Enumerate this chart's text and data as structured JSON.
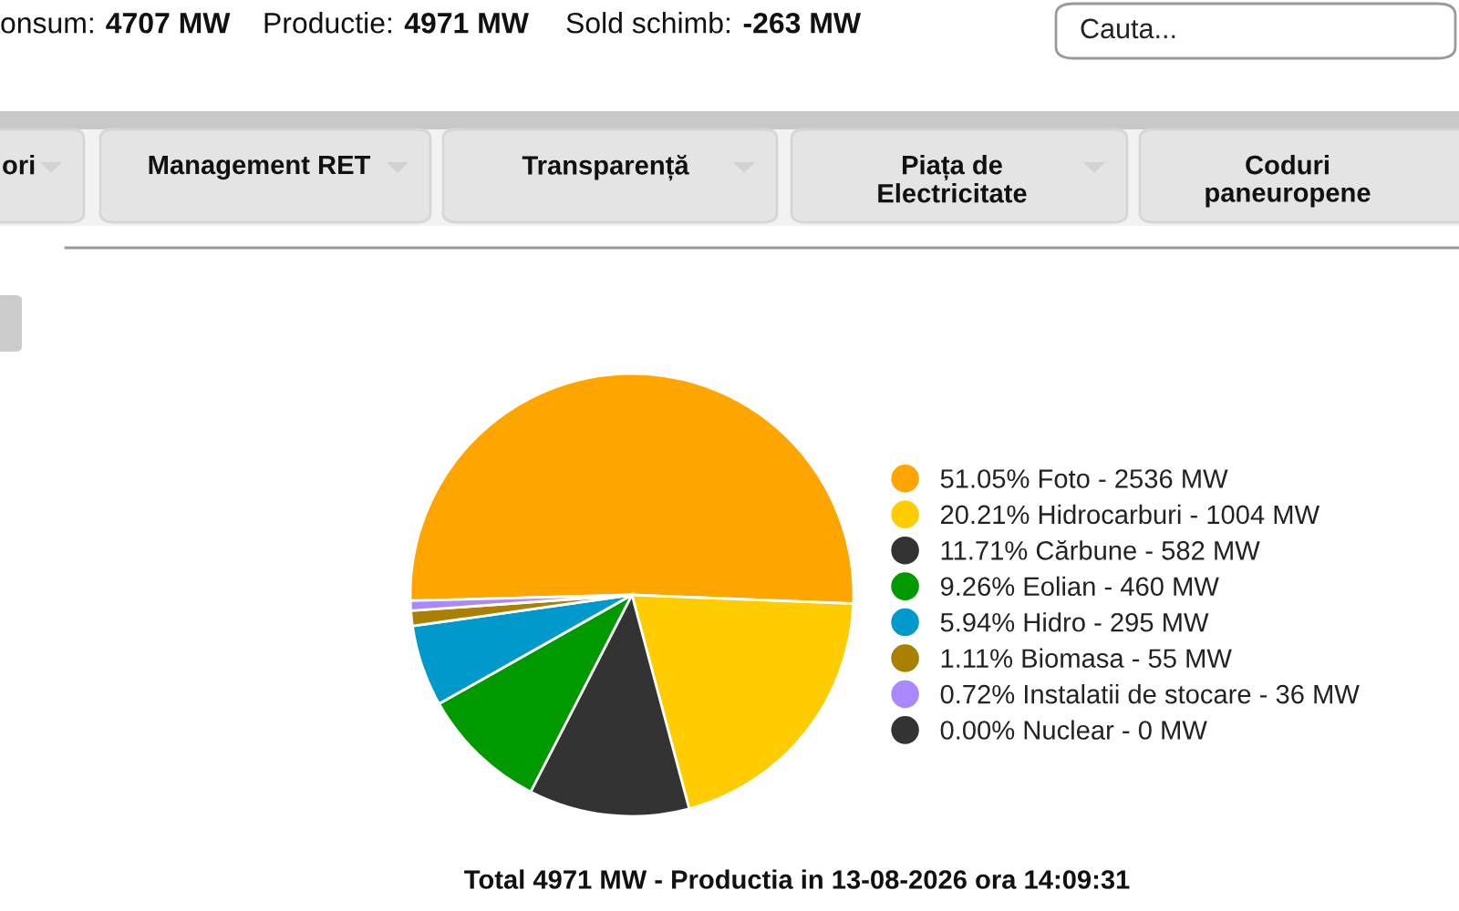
{
  "chart_data": {
    "type": "pie",
    "title": "Total 4971 MW - Productia in 13-08-2026 ora 14:09:31",
    "categories": [
      "51.05% Foto - 2536 MW",
      "20.21% Hidrocarburi - 1004 MW",
      "11.71% Cărbune - 582 MW",
      "9.26% Eolian - 460 MW",
      "5.94% Hidro - 295 MW",
      "1.11% Biomasa - 55 MW",
      "0.72% Instalatii de stocare - 36 MW",
      "0.00% Nuclear - 0 MW"
    ],
    "values": [
      51.05,
      20.21,
      11.71,
      9.26,
      5.94,
      1.11,
      0.72,
      0.0
    ],
    "colors": [
      "#ffa500",
      "#ffcc00",
      "#333333",
      "#009900",
      "#0099cc",
      "#aa8000",
      "#aa88ff",
      "#333333"
    ],
    "legend": "right",
    "annotations": [
      "onsum: 4707 MW",
      "Productie: 4971 MW",
      "Sold schimb: -263 MW",
      "Cauta...",
      "ori",
      "Management RET",
      "Transparență",
      "Piața de\nElectricitate",
      "Coduri\npaneuropene"
    ]
  }
}
